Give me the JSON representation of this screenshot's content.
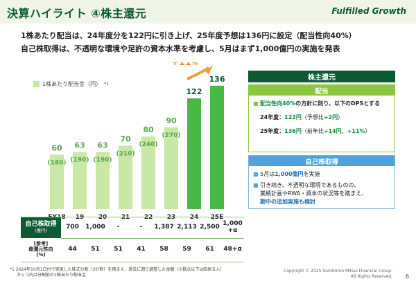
{
  "header": {
    "title": "決算ハイライト ④株主還元",
    "logo": "Fulfilled Growth"
  },
  "headlines": {
    "line1": "1株あたり配当は、24年度分を122円に引き上げ、25年度予想は136円に設定（配当性向40%）",
    "line2": "自己株取得は、不透明な環境や足許の資本水準を考慮し、5月はまず1,000億円の実施を発表"
  },
  "legend": {
    "label": "1株あたり配当金（円）",
    "note": "*1"
  },
  "growth_label": {
    "text": "+11",
    "unit": "%"
  },
  "chart_data": {
    "type": "bar",
    "categories": [
      "FY18",
      "19",
      "20",
      "21",
      "22",
      "23",
      "24",
      "25E"
    ],
    "series": [
      {
        "name": "1株あたり配当金（円）",
        "values": [
          60,
          63,
          63,
          70,
          80,
          90,
          122,
          136
        ]
      }
    ],
    "sublabels": [
      "(180)",
      "(190)",
      "(190)",
      "(210)",
      "(240)",
      "(270)",
      "",
      ""
    ],
    "ylim": [
      0,
      145
    ],
    "colors": {
      "light": "#c9e7a5",
      "dark": "#4ab847",
      "dark_bars": [
        6,
        7
      ]
    }
  },
  "buyback_table": {
    "label_main": "自己株取得",
    "label_sub": "(億円)",
    "values": [
      "700",
      "1,000",
      "-",
      "-",
      "1,387",
      "2,113",
      "2,500",
      "1,000\n+α"
    ]
  },
  "payout_table": {
    "label_tag": "[参考]",
    "label_main": "総還元性向",
    "label_sub": "(%)",
    "values": [
      "44",
      "51",
      "51",
      "41",
      "58",
      "59",
      "61",
      "48+α"
    ]
  },
  "panel": {
    "title": "株主還元",
    "dividend": {
      "title": "配当",
      "line1_pre": "配当性向40%",
      "line1_post": "の方針に則り、以下のDPSとする",
      "fy24_label": "24年度：",
      "fy24_value": "122円",
      "fy24_note": "（予想比",
      "fy24_diff": "+2円",
      "fy24_close": "）",
      "fy25_label": "25年度：",
      "fy25_value": "136円",
      "fy25_note": "（前年比",
      "fy25_diff": "+14円、+11%",
      "fy25_close": "）"
    },
    "buyback": {
      "title": "自己株取得",
      "b1_pre": "5月は",
      "b1_value": "1,000億円",
      "b1_post": "を実施",
      "b2_l1": "引き続き、不透明な環境であるものの、",
      "b2_l2": "業績計画やRWA・資本の状況等を踏まえ、",
      "b2_l3": "期中の追加実施も検討"
    }
  },
  "footnote": {
    "line1": "*1 2024年10月1日付で実施した株式分割（3分割）を踏まえ、過去に遡り調整した金額（小数点以下は四捨五入）",
    "line2": "カッコ内は分割前の1株当たり配当金"
  },
  "copyright": {
    "line1": "Copyright © 2025 Sumitomo Mitsui Financial Group.",
    "line2": "All Rights Reserved."
  },
  "page_number": "6"
}
